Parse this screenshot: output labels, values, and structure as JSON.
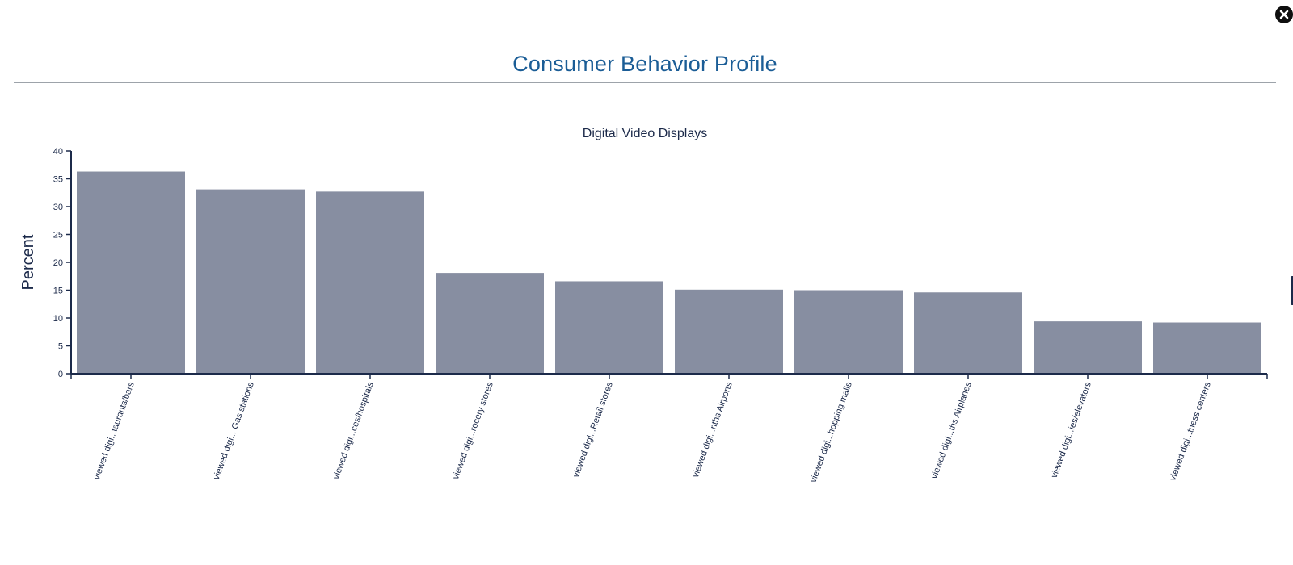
{
  "header": {
    "title": "Consumer Behavior Profile",
    "close_icon": "close-icon"
  },
  "colors": {
    "accent": "#1b5d96",
    "bar": "#878ea1",
    "axis": "#1c2a4a",
    "rule": "#9da3aa"
  },
  "chart_data": {
    "type": "bar",
    "title": "Digital Video Displays",
    "xlabel": "",
    "ylabel": "Percent",
    "ylim": [
      0,
      40
    ],
    "yticks": [
      0,
      5,
      10,
      15,
      20,
      25,
      30,
      35,
      40
    ],
    "grid": false,
    "categories": [
      "viewed digi...taurants/bars",
      "viewed digi... Gas stations",
      "viewed digi...ces/hospitals",
      "viewed digi...rocery stores",
      "viewed digi...Retail stores",
      "viewed digi...nths Airports",
      "viewed digi...hopping malls",
      "viewed digi...ths Airplanes",
      "viewed digi...ies/elevators",
      "viewed digi...tness centers"
    ],
    "values": [
      36.3,
      33.1,
      32.7,
      18.1,
      16.6,
      15.1,
      15.0,
      14.6,
      9.4,
      9.2
    ]
  }
}
